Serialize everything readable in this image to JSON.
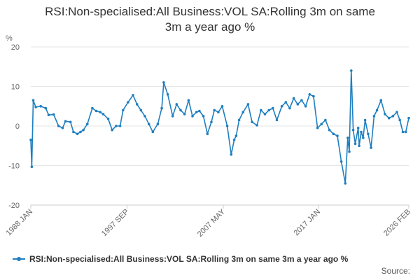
{
  "title_lines": [
    "RSI:Non-specialised:All Business:VOL SA:Rolling 3m on same",
    "3m a year ago %"
  ],
  "source_label": "Source:",
  "legend_label": "RSI:Non-specialised:All Business:VOL SA:Rolling 3m on same 3m a year ago %",
  "colors": {
    "series": "#1f7fbf",
    "grid": "#e6e6e6",
    "axis_text": "#666666"
  },
  "chart_data": {
    "type": "line",
    "title": "RSI:Non-specialised:All Business:VOL SA:Rolling 3m on same 3m a year ago %",
    "ylabel": "%",
    "xlabel": "",
    "ylim": [
      -20,
      20
    ],
    "yticks": [
      -20,
      -10,
      0,
      10,
      20
    ],
    "xlim": [
      1988.0,
      2026.1
    ],
    "xtick_labels": [
      {
        "x": 1988.0,
        "label": "1988 JAN"
      },
      {
        "x": 1997.7,
        "label": "1997 SEP"
      },
      {
        "x": 2007.4,
        "label": "2007 MAY"
      },
      {
        "x": 2017.0,
        "label": "2017 JAN"
      },
      {
        "x": 2026.1,
        "label": "2026 FEB"
      }
    ],
    "grid": true,
    "legend_position": "bottom",
    "series": [
      {
        "name": "RSI:Non-specialised:All Business:VOL SA:Rolling 3m on same 3m a year ago %",
        "x": [
          1988.0,
          1988.1,
          1988.25,
          1988.5,
          1989.0,
          1989.5,
          1989.8,
          1990.3,
          1990.8,
          1991.2,
          1991.5,
          1992.0,
          1992.3,
          1992.7,
          1993.0,
          1993.3,
          1993.7,
          1994.2,
          1994.6,
          1995.0,
          1995.3,
          1995.8,
          1996.2,
          1996.6,
          1997.0,
          1997.3,
          1997.8,
          1998.3,
          1998.7,
          1999.1,
          1999.5,
          1999.9,
          2000.3,
          2000.8,
          2001.2,
          2001.4,
          2001.8,
          2002.3,
          2002.7,
          2003.1,
          2003.5,
          2003.9,
          2004.3,
          2004.7,
          2005.0,
          2005.4,
          2005.8,
          2006.2,
          2006.5,
          2006.9,
          2007.3,
          2007.8,
          2008.2,
          2008.5,
          2008.7,
          2009.0,
          2009.4,
          2009.9,
          2010.3,
          2010.8,
          2011.2,
          2011.6,
          2012.0,
          2012.4,
          2012.8,
          2013.3,
          2013.7,
          2014.1,
          2014.5,
          2014.9,
          2015.3,
          2015.7,
          2016.1,
          2016.5,
          2016.9,
          2017.3,
          2017.7,
          2018.1,
          2018.5,
          2018.9,
          2019.3,
          2019.7,
          2019.95,
          2020.1,
          2020.3,
          2020.5,
          2020.7,
          2021.0,
          2021.1,
          2021.3,
          2021.5,
          2021.7,
          2022.0,
          2022.3,
          2022.6,
          2022.9,
          2023.3,
          2023.7,
          2024.1,
          2024.5,
          2024.9,
          2025.2,
          2025.5,
          2025.8,
          2026.1
        ],
        "values": [
          -3.5,
          -10.3,
          6.5,
          4.8,
          5.0,
          4.5,
          2.8,
          2.9,
          0.0,
          -0.5,
          1.2,
          1.0,
          -1.5,
          -2.0,
          -1.5,
          -1.0,
          0.5,
          4.5,
          3.8,
          3.5,
          3.0,
          1.8,
          -1.0,
          0.0,
          0.0,
          4.0,
          6.0,
          7.8,
          5.5,
          4.0,
          2.5,
          0.5,
          -1.5,
          0.5,
          4.5,
          11.0,
          8.0,
          2.5,
          5.5,
          4.0,
          3.0,
          6.5,
          2.5,
          3.5,
          3.8,
          2.5,
          -2.0,
          1.0,
          4.0,
          3.5,
          5.0,
          0.0,
          -7.2,
          -3.5,
          -2.5,
          1.5,
          3.5,
          5.5,
          1.0,
          0.2,
          4.0,
          3.0,
          4.0,
          4.5,
          1.5,
          5.0,
          6.0,
          4.5,
          7.0,
          5.5,
          6.5,
          5.0,
          8.0,
          7.5,
          -0.5,
          0.5,
          1.5,
          -1.0,
          -2.0,
          -2.5,
          -9.0,
          -14.5,
          -3.0,
          -6.5,
          14.0,
          -1.0,
          -4.5,
          -0.5,
          -5.0,
          -1.5,
          -3.0,
          1.5,
          -2.0,
          -5.5,
          2.5,
          4.0,
          6.5,
          3.0,
          2.0,
          2.5,
          3.5,
          1.5,
          -1.5,
          -1.5,
          2.0
        ]
      }
    ]
  }
}
